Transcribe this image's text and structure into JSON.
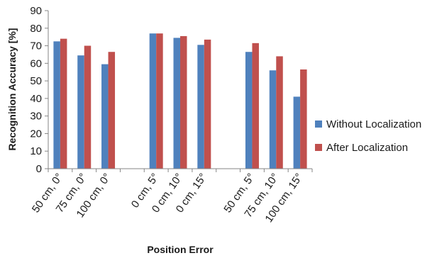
{
  "chart_data": {
    "type": "bar",
    "title": "",
    "xlabel": "Position Error",
    "ylabel": "Recognition Accuracy [%]",
    "ylim": [
      0,
      90
    ],
    "yticks": [
      0,
      10,
      20,
      30,
      40,
      50,
      60,
      70,
      80,
      90
    ],
    "grid": false,
    "legend_position": "right",
    "categories": [
      "50 cm, 0°",
      "75 cm, 0°",
      "100 cm, 0°",
      "0 cm, 5°",
      "0 cm, 10°",
      "0 cm, 15°",
      "50 cm, 5°",
      "75 cm, 10°",
      "100 cm, 15°"
    ],
    "groups": [
      [
        0,
        1,
        2
      ],
      [
        3,
        4,
        5
      ],
      [
        6,
        7,
        8
      ]
    ],
    "series": [
      {
        "name": "Without Localization",
        "color": "#4f81bd",
        "values": [
          72.5,
          64.5,
          59.5,
          77,
          74.5,
          70.5,
          66.5,
          56,
          41
        ]
      },
      {
        "name": "After Localization",
        "color": "#c0504d",
        "values": [
          74,
          70,
          66.5,
          77,
          75.5,
          73.5,
          71.5,
          64,
          56.5
        ]
      }
    ]
  }
}
